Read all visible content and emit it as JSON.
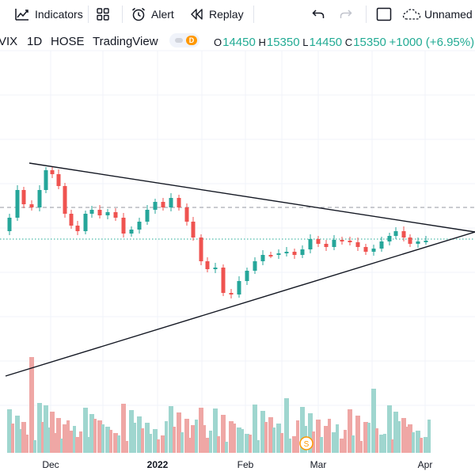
{
  "toolbar": {
    "indicators_label": "Indicators",
    "alert_label": "Alert",
    "replay_label": "Replay",
    "layout_name": "Unnamed",
    "icons": [
      "indicators-icon",
      "templates-icon",
      "alert-icon",
      "replay-icon",
      "undo-icon",
      "redo-icon",
      "fullscreen-icon",
      "cloud-icon"
    ]
  },
  "legend": {
    "symbol": "VIX",
    "interval": "1D",
    "exchange": "HOSE",
    "source": "TradingView",
    "badge_letter": "D",
    "open_key": "O",
    "open": "14450",
    "high_key": "H",
    "high": "15350",
    "low_key": "L",
    "low": "14450",
    "close_key": "C",
    "close": "15350",
    "change": "+1000 (+6.95%)",
    "up_color": "#22ab94"
  },
  "chart_data": {
    "type": "candlestick",
    "x_ticks": [
      "Dec",
      "2022",
      "Feb",
      "Mar",
      "Apr"
    ],
    "last_close": 15350,
    "event_marker": "S",
    "colors": {
      "up": "#26a69a",
      "down": "#ef5350",
      "volume_up": "#9fd6cf",
      "volume_down": "#efa7a5"
    }
  }
}
